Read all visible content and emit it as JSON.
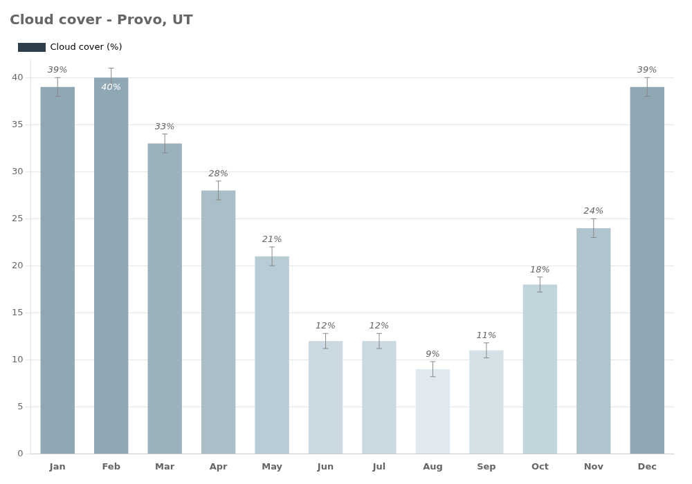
{
  "chart_data": {
    "type": "bar",
    "title": "Cloud cover - Provo, UT",
    "categories": [
      "Jan",
      "Feb",
      "Mar",
      "Apr",
      "May",
      "Jun",
      "Jul",
      "Aug",
      "Sep",
      "Oct",
      "Nov",
      "Dec"
    ],
    "series": [
      {
        "name": "Cloud cover (%)",
        "color": "#2e3d4a",
        "colors": [
          "#8fa8b4",
          "#8fa8b4",
          "#9ab2bc",
          "#aabec8",
          "#b8ccd6",
          "#cad9e2",
          "#cad9e2",
          "#e0eaee",
          "#d4e2e8",
          "#c2d4dc",
          "#b0c4ce",
          "#8fa8b4"
        ],
        "values": [
          39,
          40,
          33,
          28,
          21,
          12,
          12,
          9,
          11,
          18,
          24,
          39
        ],
        "errors": [
          1.0,
          1.0,
          1.0,
          1.0,
          1.0,
          0.8,
          0.8,
          0.8,
          0.8,
          0.8,
          1.0,
          1.0
        ],
        "value_labels": [
          "39%",
          "40%",
          "33%",
          "28%",
          "21%",
          "12%",
          "12%",
          "9%",
          "11%",
          "18%",
          "24%",
          "39%"
        ]
      }
    ],
    "ylim": [
      0,
      42
    ],
    "yticks": [
      0,
      5,
      10,
      15,
      20,
      25,
      30,
      35,
      40
    ],
    "grid": true,
    "legend": "top",
    "data_labels": true
  }
}
